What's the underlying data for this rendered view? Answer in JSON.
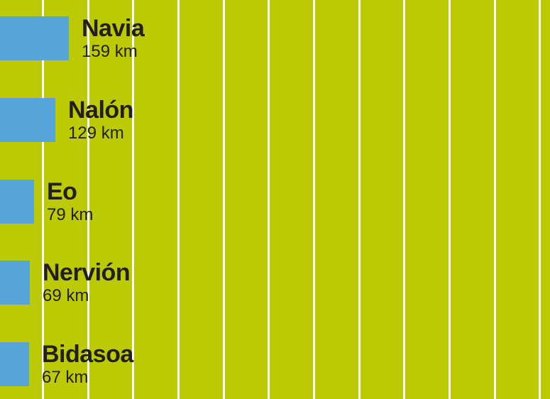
{
  "chart_data": {
    "type": "bar",
    "orientation": "horizontal",
    "title": "",
    "subtitle": "",
    "categories": [
      "Navia",
      "Nalón",
      "Eo",
      "Nervión",
      "Bidasoa"
    ],
    "values": [
      159,
      129,
      79,
      69,
      67
    ],
    "unit": "km",
    "value_labels": [
      "159 km",
      "129 km",
      "79 km",
      "69 km",
      "67 km"
    ],
    "xlabel": "",
    "ylabel": "",
    "axis_ticks": "none",
    "legend": "none",
    "grid": "vertical white lines, evenly spaced, behind bars",
    "colors": {
      "background": "#bcca04",
      "bar": "#57a6d9",
      "gridline": "#ffffff",
      "text": "#231f20"
    }
  }
}
